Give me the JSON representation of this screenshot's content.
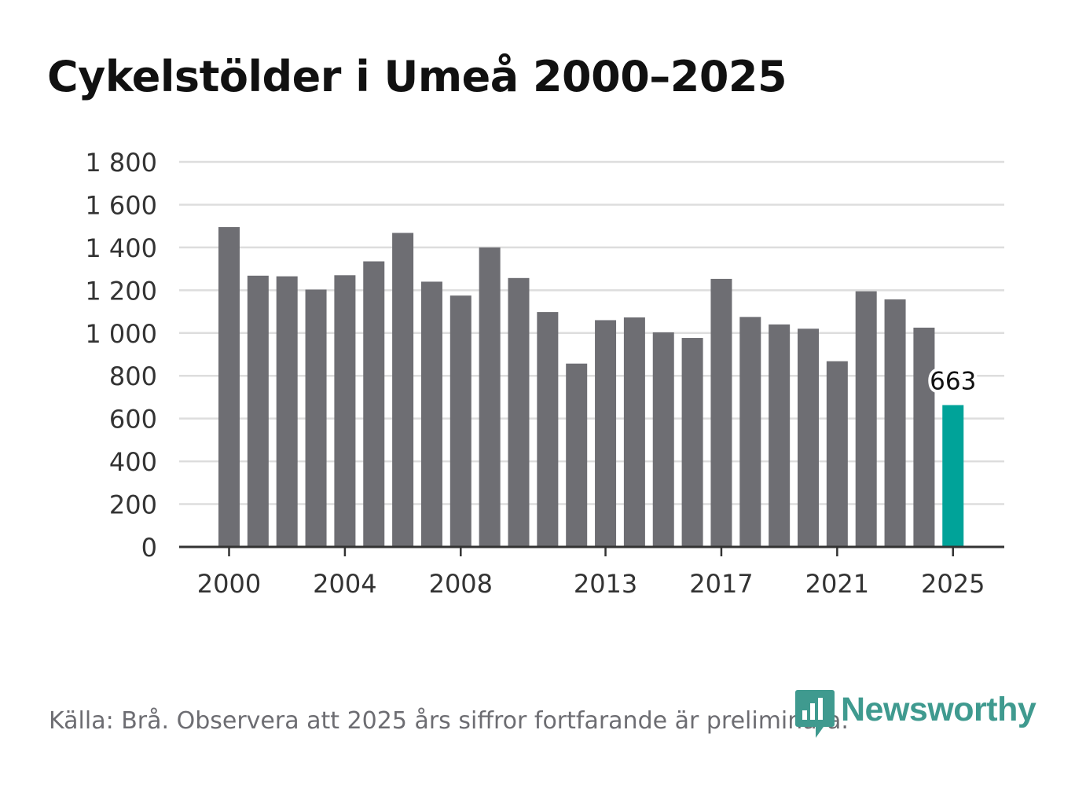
{
  "chart_data": {
    "type": "bar",
    "title": "Cykelstölder i Umeå 2000–2025",
    "xlabel": "",
    "ylabel": "",
    "categories": [
      "2000",
      "2001",
      "2002",
      "2003",
      "2004",
      "2005",
      "2006",
      "2007",
      "2008",
      "2009",
      "2010",
      "2011",
      "2012",
      "2013",
      "2014",
      "2015",
      "2016",
      "2017",
      "2018",
      "2019",
      "2020",
      "2021",
      "2022",
      "2023",
      "2024",
      "2025"
    ],
    "values": [
      1495,
      1268,
      1265,
      1203,
      1270,
      1335,
      1468,
      1240,
      1175,
      1400,
      1257,
      1098,
      857,
      1060,
      1073,
      1003,
      977,
      1253,
      1075,
      1040,
      1020,
      868,
      1195,
      1157,
      1025,
      663
    ],
    "ylim": [
      0,
      1800
    ],
    "y_ticks": [
      0,
      200,
      400,
      600,
      800,
      1000,
      1200,
      1400,
      1600,
      1800
    ],
    "y_tick_labels": [
      "0",
      "200",
      "400",
      "600",
      "800",
      "1 000",
      "1 200",
      "1 400",
      "1 600",
      "1 800"
    ],
    "x_tick_labels": [
      "2000",
      "2004",
      "2008",
      "2013",
      "2017",
      "2021",
      "2025"
    ],
    "grid": true,
    "highlight": {
      "category": "2025",
      "label": "663"
    },
    "colors": {
      "bar": "#6e6e73",
      "highlight": "#00a399",
      "grid": "#dddddd",
      "axis": "#333333"
    }
  },
  "footer": {
    "source": "Källa: Brå. Observera att 2025 års siffror fortfarande är preliminära."
  },
  "brand": {
    "name": "Newsworthy",
    "icon": "newsworthy-logo-icon",
    "color": "#3f9a8f"
  }
}
